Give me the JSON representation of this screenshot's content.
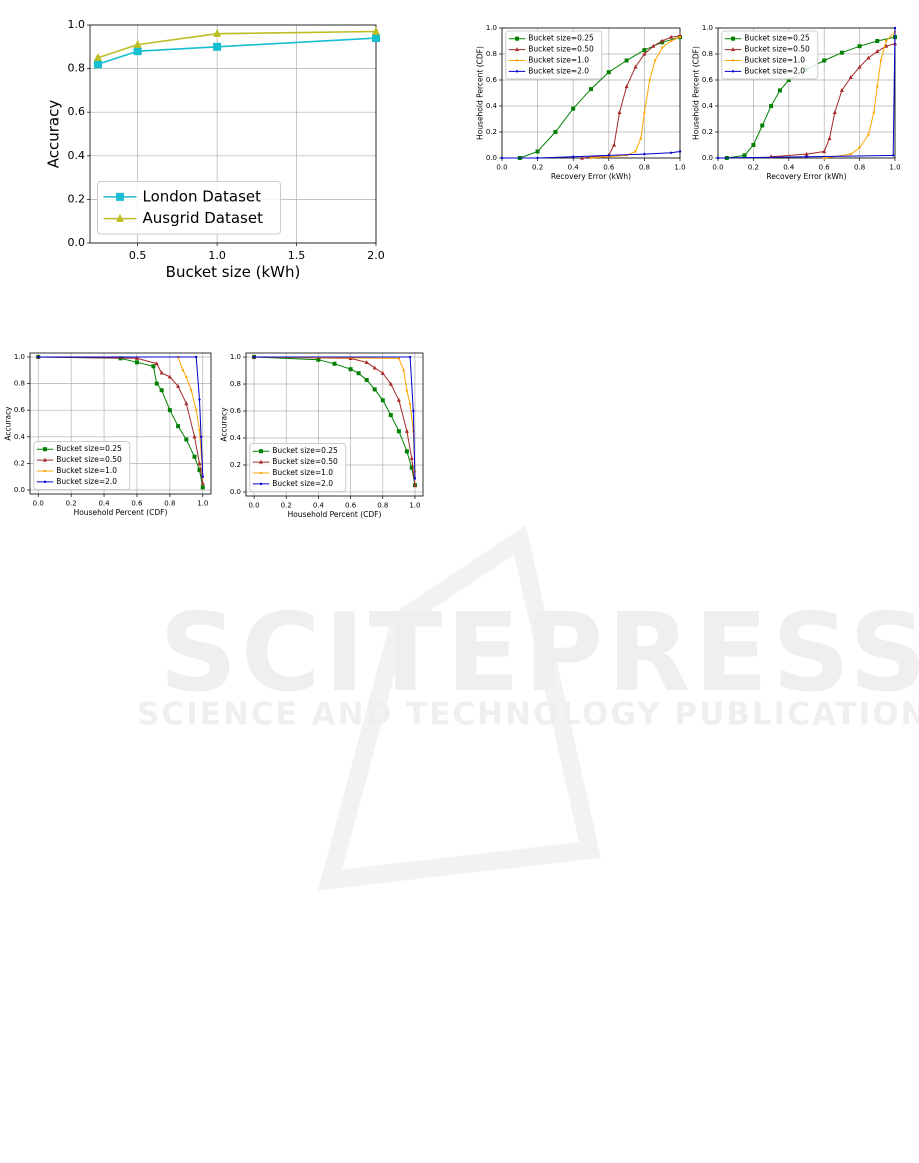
{
  "watermark": {
    "title": "SCITEPRESS",
    "subtitle": "SCIENCE AND TECHNOLOGY PUBLICATIONS"
  },
  "chart_data": [
    {
      "type": "line",
      "x_label": "Bucket size (kWh)",
      "y_label": "Accuracy",
      "grid": true,
      "legend": "lower left",
      "x": [
        0.25,
        0.5,
        1.0,
        2.0
      ],
      "xlim": [
        0.2,
        2.0
      ],
      "xticks": [
        0.5,
        {
          "value": 1,
          "label": "1.0"
        },
        1.5,
        {
          "value": 2,
          "label": "2.0"
        }
      ],
      "ylim": [
        0,
        1
      ],
      "yticks": [
        {
          "value": 0,
          "label": "0.0"
        },
        0.2,
        0.4,
        0.6,
        0.8,
        {
          "value": 1,
          "label": "1.0"
        }
      ],
      "series": [
        {
          "name": "London Dataset",
          "color": "#17becf",
          "marker": "s",
          "values": [
            0.82,
            0.88,
            0.9,
            0.94
          ]
        },
        {
          "name": "Ausgrid Dataset",
          "color": "#bcbd22",
          "marker": "^",
          "values": [
            0.85,
            0.91,
            0.96,
            0.97
          ]
        }
      ]
    },
    {
      "type": "line",
      "x_label": "Recovery Error (kWh)",
      "y_label": "Household Percent (CDF)",
      "grid": true,
      "legend": "upper left",
      "xlim": [
        0,
        1
      ],
      "xticks": [
        {
          "value": 0,
          "label": "0.0"
        },
        0.2,
        0.4,
        0.6,
        0.8,
        {
          "value": 1,
          "label": "1.0"
        }
      ],
      "ylim": [
        0,
        1
      ],
      "yticks": [
        {
          "value": 0,
          "label": "0.0"
        },
        0.2,
        0.4,
        0.6,
        0.8,
        {
          "value": 1,
          "label": "1.0"
        }
      ],
      "series": [
        {
          "name": "Bucket size=0.25",
          "color": "#008000",
          "marker": "s",
          "x": [
            0.1,
            0.2,
            0.3,
            0.4,
            0.5,
            0.6,
            0.7,
            0.8,
            0.9,
            1.0
          ],
          "values": [
            0.0,
            0.05,
            0.2,
            0.38,
            0.53,
            0.66,
            0.75,
            0.83,
            0.89,
            0.93
          ]
        },
        {
          "name": "Bucket size=0.50",
          "color": "#a52a2a",
          "marker": "^",
          "x": [
            0.45,
            0.6,
            0.63,
            0.66,
            0.7,
            0.75,
            0.8,
            0.85,
            0.9,
            0.95,
            1.0
          ],
          "values": [
            0.0,
            0.02,
            0.1,
            0.35,
            0.55,
            0.7,
            0.8,
            0.86,
            0.9,
            0.93,
            0.94
          ]
        },
        {
          "name": "Bucket size=1.0",
          "color": "#ffa500",
          "marker": ".",
          "x": [
            0.5,
            0.7,
            0.75,
            0.78,
            0.8,
            0.83,
            0.86,
            0.9,
            0.95,
            1.0
          ],
          "values": [
            0.0,
            0.02,
            0.05,
            0.15,
            0.35,
            0.6,
            0.75,
            0.85,
            0.9,
            0.93
          ]
        },
        {
          "name": "Bucket size=2.0",
          "color": "#0000cd",
          "marker": ".",
          "x": [
            0.0,
            0.2,
            0.4,
            0.6,
            0.8,
            0.95,
            1.0
          ],
          "values": [
            0.0,
            0.0,
            0.01,
            0.02,
            0.03,
            0.04,
            0.05
          ]
        }
      ]
    },
    {
      "type": "line",
      "x_label": "Recovery Error (kWh)",
      "y_label": "Household Percent (CDF)",
      "grid": true,
      "legend": "upper left",
      "xlim": [
        0,
        1
      ],
      "xticks": [
        {
          "value": 0,
          "label": "0.0"
        },
        0.2,
        0.4,
        0.6,
        0.8,
        {
          "value": 1,
          "label": "1.0"
        }
      ],
      "ylim": [
        0,
        1
      ],
      "yticks": [
        {
          "value": 0,
          "label": "0.0"
        },
        0.2,
        0.4,
        0.6,
        0.8,
        {
          "value": 1,
          "label": "1.0"
        }
      ],
      "series": [
        {
          "name": "Bucket size=0.25",
          "color": "#008000",
          "marker": "s",
          "x": [
            0.05,
            0.15,
            0.2,
            0.25,
            0.3,
            0.35,
            0.4,
            0.5,
            0.6,
            0.7,
            0.8,
            0.9,
            1.0
          ],
          "values": [
            0.0,
            0.02,
            0.1,
            0.25,
            0.4,
            0.52,
            0.6,
            0.68,
            0.75,
            0.81,
            0.86,
            0.9,
            0.93
          ]
        },
        {
          "name": "Bucket size=0.50",
          "color": "#a52a2a",
          "marker": "^",
          "x": [
            0.3,
            0.5,
            0.6,
            0.63,
            0.66,
            0.7,
            0.75,
            0.8,
            0.85,
            0.9,
            0.95,
            1.0
          ],
          "values": [
            0.01,
            0.03,
            0.05,
            0.15,
            0.35,
            0.52,
            0.62,
            0.7,
            0.77,
            0.82,
            0.86,
            0.88
          ]
        },
        {
          "name": "Bucket size=1.0",
          "color": "#ffa500",
          "marker": ".",
          "x": [
            0.6,
            0.75,
            0.8,
            0.85,
            0.88,
            0.9,
            0.92,
            0.95,
            1.0
          ],
          "values": [
            0.0,
            0.03,
            0.08,
            0.18,
            0.35,
            0.55,
            0.75,
            0.9,
            0.97
          ]
        },
        {
          "name": "Bucket size=2.0",
          "color": "#0000cd",
          "marker": ".",
          "x": [
            0.0,
            0.5,
            0.99,
            1.0
          ],
          "values": [
            0.0,
            0.01,
            0.02,
            1.0
          ]
        }
      ]
    },
    {
      "type": "line",
      "x_label": "Household Percent (CDF)",
      "y_label": "Accuracy",
      "grid": true,
      "legend": "lower left",
      "xlim": [
        -0.05,
        1.05
      ],
      "xticks": [
        {
          "value": 0,
          "label": "0.0"
        },
        0.2,
        0.4,
        0.6,
        0.8,
        {
          "value": 1,
          "label": "1.0"
        }
      ],
      "ylim": [
        -0.03,
        1.03
      ],
      "yticks": [
        {
          "value": 0,
          "label": "0.0"
        },
        0.2,
        0.4,
        0.6,
        0.8,
        {
          "value": 1,
          "label": "1.0"
        }
      ],
      "series": [
        {
          "name": "Bucket size=0.25",
          "color": "#008000",
          "marker": "s",
          "x": [
            0.0,
            0.5,
            0.6,
            0.7,
            0.72,
            0.75,
            0.8,
            0.85,
            0.9,
            0.95,
            0.98,
            1.0
          ],
          "values": [
            1.0,
            0.99,
            0.96,
            0.93,
            0.8,
            0.75,
            0.6,
            0.48,
            0.38,
            0.25,
            0.15,
            0.02
          ]
        },
        {
          "name": "Bucket size=0.50",
          "color": "#a52a2a",
          "marker": "^",
          "x": [
            0.0,
            0.6,
            0.72,
            0.75,
            0.8,
            0.85,
            0.9,
            0.95,
            0.98,
            1.0
          ],
          "values": [
            1.0,
            0.99,
            0.95,
            0.88,
            0.85,
            0.78,
            0.65,
            0.4,
            0.2,
            0.05
          ]
        },
        {
          "name": "Bucket size=1.0",
          "color": "#ffa500",
          "marker": ".",
          "x": [
            0.0,
            0.85,
            0.88,
            0.9,
            0.93,
            0.96,
            0.98,
            1.0
          ],
          "values": [
            1.0,
            1.0,
            0.9,
            0.85,
            0.75,
            0.6,
            0.45,
            0.1
          ]
        },
        {
          "name": "Bucket size=2.0",
          "color": "#0000cd",
          "marker": ".",
          "x": [
            0.0,
            0.96,
            0.98,
            0.99,
            1.0
          ],
          "values": [
            1.0,
            1.0,
            0.68,
            0.4,
            0.1
          ]
        }
      ]
    },
    {
      "type": "line",
      "x_label": "Household Percent (CDF)",
      "y_label": "Accuracy",
      "grid": true,
      "legend": "lower left",
      "xlim": [
        -0.05,
        1.05
      ],
      "xticks": [
        {
          "value": 0,
          "label": "0.0"
        },
        0.2,
        0.4,
        0.6,
        0.8,
        {
          "value": 1,
          "label": "1.0"
        }
      ],
      "ylim": [
        -0.03,
        1.03
      ],
      "yticks": [
        {
          "value": 0,
          "label": "0.0"
        },
        0.2,
        0.4,
        0.6,
        0.8,
        {
          "value": 1,
          "label": "1.0"
        }
      ],
      "series": [
        {
          "name": "Bucket size=0.25",
          "color": "#008000",
          "marker": "s",
          "x": [
            0.0,
            0.4,
            0.5,
            0.6,
            0.65,
            0.7,
            0.75,
            0.8,
            0.85,
            0.9,
            0.95,
            0.98,
            1.0
          ],
          "values": [
            1.0,
            0.98,
            0.95,
            0.91,
            0.88,
            0.83,
            0.76,
            0.68,
            0.57,
            0.45,
            0.3,
            0.18,
            0.05
          ]
        },
        {
          "name": "Bucket size=0.50",
          "color": "#a52a2a",
          "marker": "^",
          "x": [
            0.0,
            0.6,
            0.7,
            0.75,
            0.8,
            0.85,
            0.9,
            0.95,
            0.98,
            1.0
          ],
          "values": [
            1.0,
            0.99,
            0.96,
            0.92,
            0.88,
            0.8,
            0.68,
            0.45,
            0.25,
            0.05
          ]
        },
        {
          "name": "Bucket size=1.0",
          "color": "#ffa500",
          "marker": ".",
          "x": [
            0.0,
            0.9,
            0.93,
            0.95,
            0.97,
            0.99,
            1.0
          ],
          "values": [
            1.0,
            0.99,
            0.9,
            0.75,
            0.65,
            0.45,
            0.15
          ]
        },
        {
          "name": "Bucket size=2.0",
          "color": "#0000cd",
          "marker": ".",
          "x": [
            0.0,
            0.97,
            0.99,
            1.0
          ],
          "values": [
            1.0,
            1.0,
            0.6,
            0.1
          ]
        }
      ]
    }
  ]
}
